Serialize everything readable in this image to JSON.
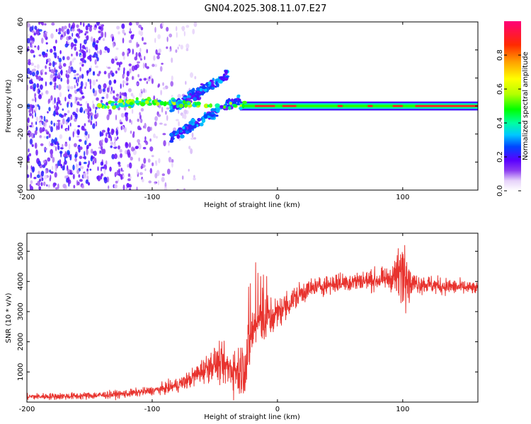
{
  "figure": {
    "title": "GN04.2025.308.11.07.E27",
    "background": "#ffffff"
  },
  "chart_data": [
    {
      "type": "heatmap",
      "name": "spectrogram",
      "xlabel": "Height of straight line (km)",
      "ylabel": "Frequency (Hz)",
      "xlim": [
        -200,
        160
      ],
      "ylim": [
        -60,
        60
      ],
      "xticks": [
        -200,
        -100,
        0,
        100
      ],
      "yticks": [
        -60,
        -40,
        -20,
        0,
        20,
        40,
        60
      ],
      "colorbar": {
        "label": "Normalized spectral amplitude",
        "range": [
          0.0,
          1.0
        ],
        "ticks": [
          0.0,
          0.2,
          0.4,
          0.6,
          0.8
        ]
      },
      "features": [
        {
          "name": "noise-band",
          "x_range": [
            -200,
            -75
          ],
          "y_range": [
            -60,
            60
          ],
          "amplitude": [
            0.05,
            0.25
          ]
        },
        {
          "name": "main-line",
          "x_range": [
            -145,
            160
          ],
          "frequency_hz": 0,
          "amplitude": [
            0.35,
            1.0
          ]
        },
        {
          "name": "chirp-upper",
          "x_range": [
            -85,
            -40
          ],
          "frequency_hz": [
            -2,
            22
          ]
        },
        {
          "name": "chirp-lower",
          "x_range": [
            -85,
            -30
          ],
          "frequency_hz": [
            -22,
            5
          ]
        }
      ]
    },
    {
      "type": "line",
      "name": "snr",
      "xlabel": "Height of straight line (km)",
      "ylabel": "SNR (10 * v/v)",
      "xlim": [
        -200,
        160
      ],
      "ylim": [
        0,
        5600
      ],
      "xticks": [
        -200,
        -100,
        0,
        100
      ],
      "yticks": [
        1000,
        2000,
        3000,
        4000,
        5000
      ],
      "color": "#e8332e",
      "envelope": {
        "x": [
          -200,
          -180,
          -160,
          -140,
          -120,
          -100,
          -90,
          -80,
          -70,
          -60,
          -50,
          -40,
          -30,
          -25,
          -20,
          -15,
          -10,
          -5,
          0,
          10,
          20,
          30,
          40,
          60,
          80,
          90,
          95,
          100,
          105,
          110,
          130,
          150,
          160
        ],
        "y": [
          180,
          190,
          200,
          230,
          280,
          380,
          450,
          560,
          750,
          1050,
          1300,
          1150,
          1050,
          1300,
          2400,
          2700,
          2600,
          2800,
          2950,
          3300,
          3650,
          3800,
          3900,
          4000,
          4050,
          4100,
          4200,
          4400,
          3900,
          3950,
          3850,
          3800,
          3750
        ]
      },
      "noise": {
        "x": [
          -200,
          -100,
          -70,
          -40,
          -25,
          -15,
          0,
          30,
          90,
          100,
          108,
          160
        ],
        "y": [
          90,
          120,
          250,
          600,
          900,
          700,
          450,
          280,
          300,
          900,
          300,
          180
        ]
      }
    }
  ]
}
